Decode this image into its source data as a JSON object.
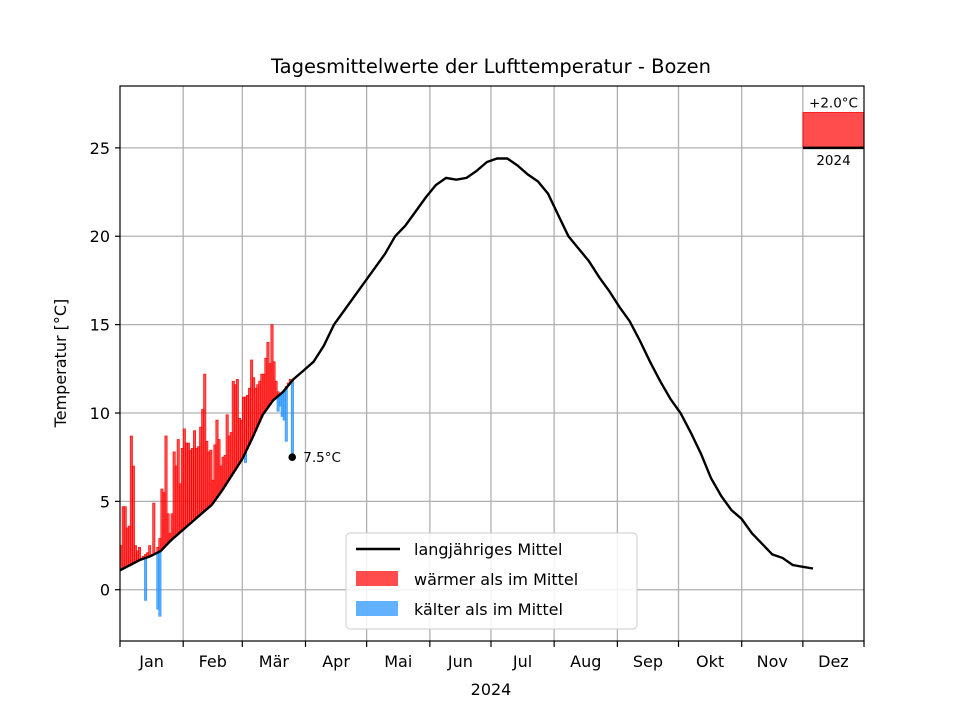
{
  "chart_data": {
    "type": "bar+line",
    "title": "Tagesmittelwerte der Lufttemperatur - Bozen",
    "xlabel": "2024",
    "ylabel": "Temperatur [°C]",
    "ylim": [
      -2.9,
      28.5
    ],
    "xlim_days": [
      0,
      365
    ],
    "yticks": [
      0,
      5,
      10,
      15,
      20,
      25
    ],
    "grid": true,
    "months": [
      "Jan",
      "Feb",
      "Mär",
      "Apr",
      "Mai",
      "Jun",
      "Jul",
      "Aug",
      "Sep",
      "Okt",
      "Nov",
      "Dez"
    ],
    "month_start_days": [
      0,
      31,
      60,
      91,
      121,
      152,
      182,
      213,
      244,
      274,
      305,
      335,
      366
    ],
    "series": [
      {
        "name": "langjähriges Mittel",
        "color": "#000000",
        "points": [
          [
            0,
            1.1
          ],
          [
            5,
            1.4
          ],
          [
            10,
            1.7
          ],
          [
            15,
            1.9
          ],
          [
            20,
            2.2
          ],
          [
            25,
            2.8
          ],
          [
            30,
            3.3
          ],
          [
            35,
            3.8
          ],
          [
            40,
            4.3
          ],
          [
            45,
            4.8
          ],
          [
            50,
            5.6
          ],
          [
            55,
            6.5
          ],
          [
            60,
            7.4
          ],
          [
            65,
            8.6
          ],
          [
            70,
            9.9
          ],
          [
            75,
            10.7
          ],
          [
            80,
            11.2
          ],
          [
            85,
            11.9
          ],
          [
            90,
            12.4
          ],
          [
            95,
            12.9
          ],
          [
            100,
            13.8
          ],
          [
            105,
            15.0
          ],
          [
            110,
            15.8
          ],
          [
            115,
            16.6
          ],
          [
            120,
            17.4
          ],
          [
            125,
            18.2
          ],
          [
            130,
            19.0
          ],
          [
            135,
            20.0
          ],
          [
            140,
            20.6
          ],
          [
            145,
            21.4
          ],
          [
            150,
            22.2
          ],
          [
            155,
            22.9
          ],
          [
            160,
            23.3
          ],
          [
            165,
            23.2
          ],
          [
            170,
            23.3
          ],
          [
            175,
            23.7
          ],
          [
            180,
            24.2
          ],
          [
            185,
            24.4
          ],
          [
            190,
            24.4
          ],
          [
            195,
            24.0
          ],
          [
            200,
            23.5
          ],
          [
            205,
            23.1
          ],
          [
            210,
            22.4
          ],
          [
            215,
            21.2
          ],
          [
            220,
            20.0
          ],
          [
            225,
            19.3
          ],
          [
            230,
            18.6
          ],
          [
            235,
            17.7
          ],
          [
            240,
            16.9
          ],
          [
            245,
            16.0
          ],
          [
            250,
            15.2
          ],
          [
            255,
            14.1
          ],
          [
            260,
            12.9
          ],
          [
            265,
            11.8
          ],
          [
            270,
            10.8
          ],
          [
            275,
            10.0
          ],
          [
            280,
            8.9
          ],
          [
            285,
            7.7
          ],
          [
            290,
            6.3
          ],
          [
            295,
            5.3
          ],
          [
            300,
            4.5
          ],
          [
            305,
            4.0
          ],
          [
            310,
            3.2
          ],
          [
            315,
            2.6
          ],
          [
            320,
            2.0
          ],
          [
            325,
            1.8
          ],
          [
            330,
            1.4
          ],
          [
            335,
            1.3
          ],
          [
            340,
            1.2
          ]
        ]
      },
      {
        "name": "wärmer als im Mittel",
        "color": "#ff0000",
        "values": [
          2.5,
          4.7,
          4.7,
          3.5,
          3.6,
          8.7,
          7.0,
          2.5,
          2.2,
          2.4,
          1.8,
          1.9,
          2.0,
          2.1,
          2.5,
          2.0,
          4.9,
          2.1,
          2.4,
          2.9,
          5.7,
          5.5,
          8.7,
          4.3,
          3.2,
          4.3,
          7.8,
          7.0,
          8.5,
          6.0,
          8.0,
          9.1,
          8.3,
          8.3,
          7.9,
          8.0,
          9.0,
          8.0,
          8.1,
          9.2,
          10.2,
          12.2,
          8.4,
          7.8,
          7.9,
          6.2,
          8.2,
          9.6,
          8.5,
          7.0,
          7.5,
          7.6,
          9.9,
          8.7,
          8.9,
          11.8,
          11.6,
          11.9,
          9.7,
          9.6,
          10.9,
          10.9,
          11.0,
          11.4,
          13.0,
          12.0,
          11.4,
          11.6,
          11.8,
          12.2,
          12.2,
          13.1,
          14.0,
          12.8,
          15.0,
          12.9,
          11.8,
          11.2,
          11.0,
          11.0,
          11.2,
          11.5,
          11.7,
          11.9,
          11.6
        ]
      },
      {
        "name": "kälter als im Mittel",
        "color": "#1e90ff",
        "values": [
          null,
          null,
          null,
          null,
          null,
          null,
          null,
          null,
          null,
          null,
          null,
          null,
          -0.6,
          null,
          null,
          null,
          null,
          null,
          -1.1,
          -1.5,
          null,
          null,
          null,
          null,
          null,
          null,
          null,
          null,
          null,
          null,
          null,
          null,
          null,
          null,
          null,
          null,
          null,
          null,
          null,
          5.4,
          5.2,
          null,
          null,
          null,
          null,
          null,
          null,
          null,
          null,
          null,
          null,
          null,
          null,
          null,
          null,
          null,
          null,
          null,
          null,
          null,
          null,
          7.2,
          null,
          null,
          null,
          null,
          null,
          null,
          null,
          null,
          null,
          null,
          null,
          null,
          null,
          null,
          null,
          10.1,
          10.4,
          9.8,
          9.6,
          8.4,
          null,
          null,
          7.5
        ]
      }
    ],
    "annotations": {
      "last_value": "7.5°C",
      "anomaly_value": "+2.0°C",
      "anomaly_year": "2024"
    },
    "legend": {
      "position": "bottom-center",
      "items": [
        {
          "label": "langjähriges Mittel",
          "color": "#000000",
          "kind": "line"
        },
        {
          "label": "wärmer als im Mittel",
          "color": "#ff0000",
          "kind": "patch"
        },
        {
          "label": "kälter als im Mittel",
          "color": "#1e90ff",
          "kind": "patch"
        }
      ]
    }
  }
}
